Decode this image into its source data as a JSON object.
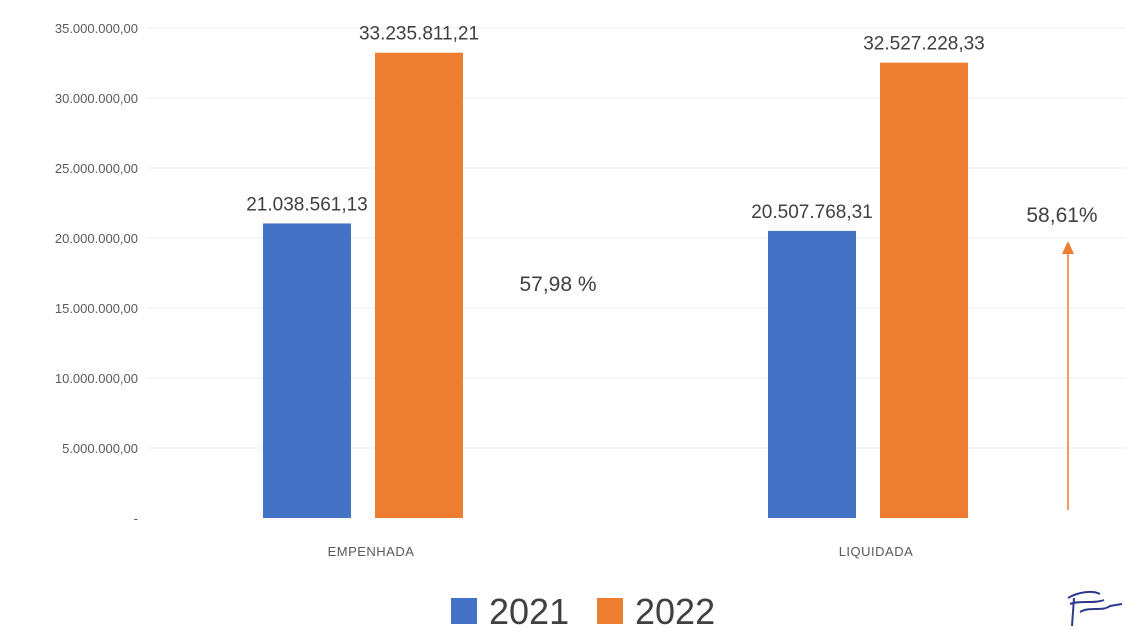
{
  "chart_data": {
    "type": "bar",
    "categories": [
      "EMPENHADA",
      "LIQUIDADA"
    ],
    "series": [
      {
        "name": "2021",
        "values": [
          21038561.13,
          20507768.31
        ],
        "labels": [
          "21.038.561,13",
          "20.507.768,31"
        ],
        "color": "#4472c4"
      },
      {
        "name": "2022",
        "values": [
          33235811.21,
          32527228.33
        ],
        "labels": [
          "33.235.811,21",
          "32.527.228,33"
        ],
        "color": "#ed7d31"
      }
    ],
    "ylim": [
      0,
      35000000
    ],
    "yticks": [
      0,
      5000000,
      10000000,
      15000000,
      20000000,
      25000000,
      30000000,
      35000000
    ],
    "ytick_labels": [
      "-",
      "5.000.000,00",
      "10.000.000,00",
      "15.000.000,00",
      "20.000.000,00",
      "25.000.000,00",
      "30.000.000,00",
      "35.000.000,00"
    ],
    "grid": true,
    "legend_position": "bottom",
    "annotations": [
      {
        "text": "57,98 %",
        "category": "EMPENHADA"
      },
      {
        "text": "58,61%",
        "category": "LIQUIDADA",
        "arrow": true,
        "arrow_color": "#ed7d31"
      }
    ]
  }
}
